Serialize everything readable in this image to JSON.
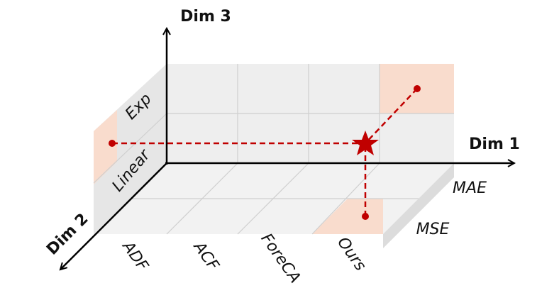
{
  "axes": {
    "dim1": "Dim 1",
    "dim2": "Dim 2",
    "dim3": "Dim 3"
  },
  "dim1_labels": [
    "ADF",
    "ACF",
    "ForeCA",
    "Ours"
  ],
  "dim2_labels": [
    "MAE",
    "MSE"
  ],
  "dim3_labels": [
    "Exp",
    "Linear"
  ]
}
